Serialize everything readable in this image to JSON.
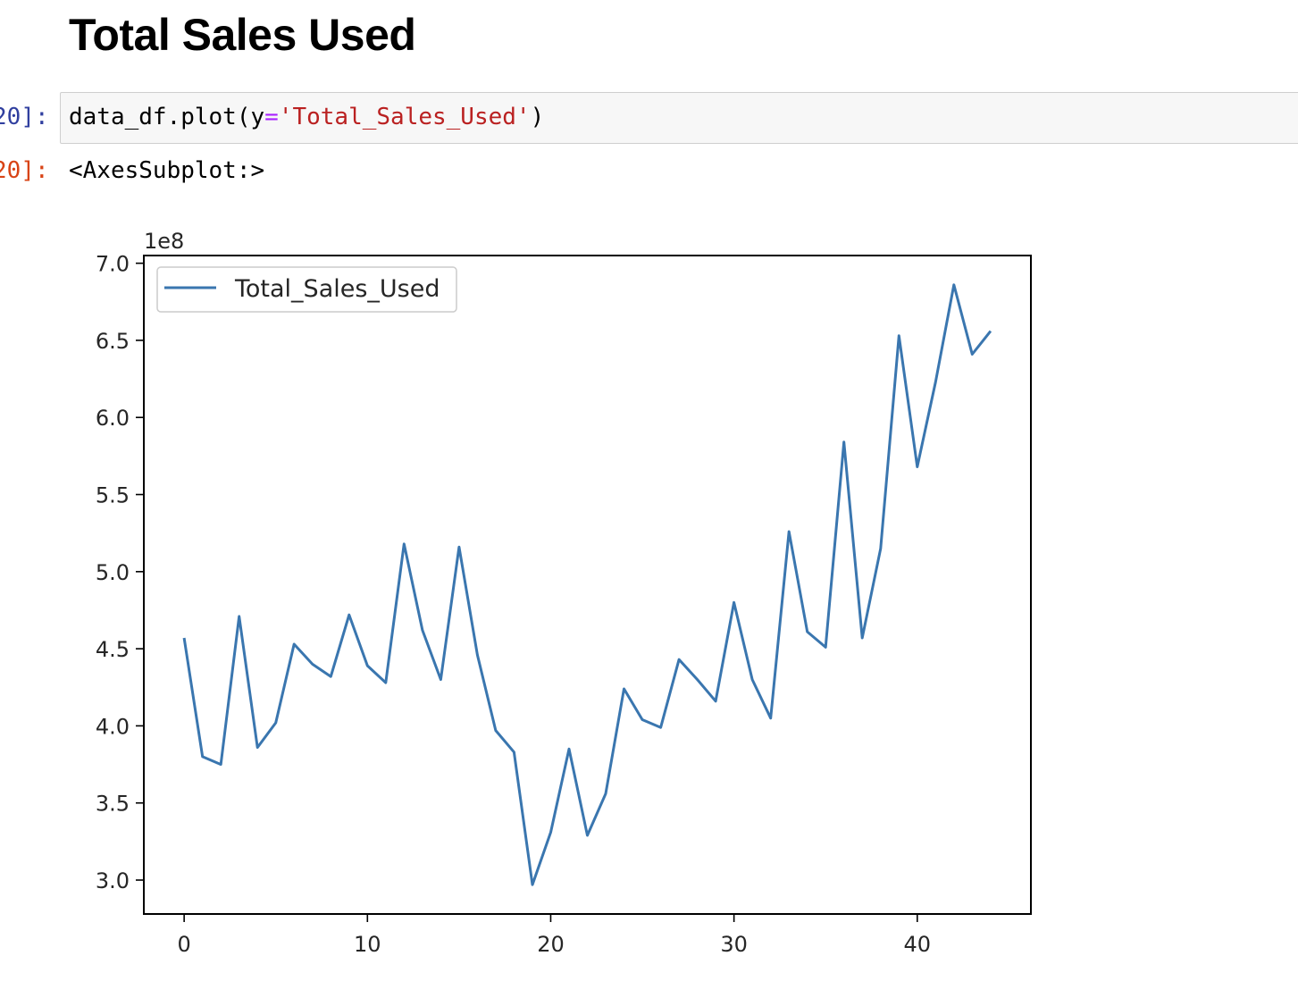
{
  "notebook": {
    "heading": "Total Sales Used",
    "cells": {
      "input_prompt": "20]:",
      "output_prompt": "20]:",
      "code": {
        "obj": "data_df.plot(y",
        "op": "=",
        "str": "'Total_Sales_Used'",
        "close": ")"
      },
      "output_text": "<AxesSubplot:>"
    }
  },
  "chart_data": {
    "type": "line",
    "title": "",
    "xlabel": "",
    "ylabel": "",
    "y_offset_label": "1e8",
    "xlim": [
      -2.2,
      46.2
    ],
    "ylim": [
      2.78,
      7.05
    ],
    "x_ticks": [
      0,
      10,
      20,
      30,
      40
    ],
    "y_ticks": [
      3.0,
      3.5,
      4.0,
      4.5,
      5.0,
      5.5,
      6.0,
      6.5,
      7.0
    ],
    "y_tick_labels": [
      "3.0",
      "3.5",
      "4.0",
      "4.5",
      "5.0",
      "5.5",
      "6.0",
      "6.5",
      "7.0"
    ],
    "x_tick_labels": [
      "0",
      "10",
      "20",
      "30",
      "40"
    ],
    "legend": "top-left",
    "grid": false,
    "series": [
      {
        "name": "Total_Sales_Used",
        "color": "#3a76af",
        "x": [
          0,
          1,
          2,
          3,
          4,
          5,
          6,
          7,
          8,
          9,
          10,
          11,
          12,
          13,
          14,
          15,
          16,
          17,
          18,
          19,
          20,
          21,
          22,
          23,
          24,
          25,
          26,
          27,
          28,
          29,
          30,
          31,
          32,
          33,
          34,
          35,
          36,
          37,
          38,
          39,
          40,
          41,
          42,
          43,
          44
        ],
        "values": [
          4.57,
          3.8,
          3.75,
          4.71,
          3.86,
          4.02,
          4.53,
          4.4,
          4.32,
          4.72,
          4.39,
          4.28,
          5.18,
          4.62,
          4.3,
          5.16,
          4.46,
          3.97,
          3.83,
          2.97,
          3.31,
          3.85,
          3.29,
          3.56,
          4.24,
          4.04,
          3.99,
          4.43,
          4.3,
          4.16,
          4.8,
          4.3,
          4.05,
          5.26,
          4.61,
          4.51,
          5.84,
          4.57,
          5.15,
          6.53,
          5.68,
          6.23,
          6.86,
          6.41,
          6.56
        ]
      }
    ]
  }
}
